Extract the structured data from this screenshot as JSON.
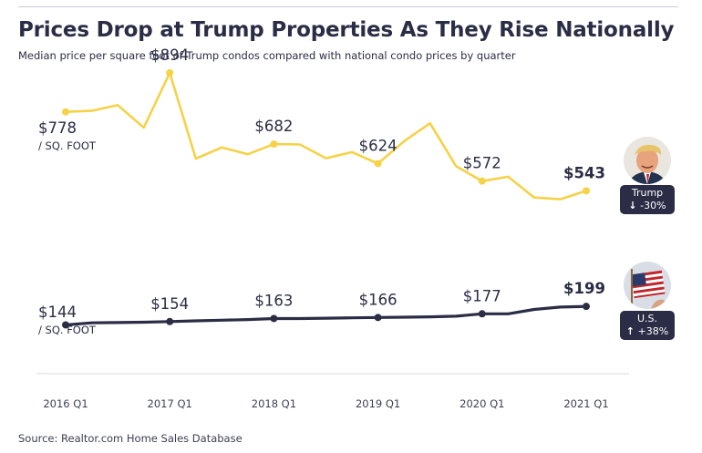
{
  "header": {
    "title": "Prices Drop at Trump Properties As They Rise Nationally",
    "subtitle": "Median price per square foot of Trump condos compared with national condo prices by quarter"
  },
  "footer": {
    "source": "Source: Realtor.com Home Sales Database"
  },
  "colors": {
    "trump": "#f5d247",
    "us": "#2a2d45",
    "text": "#2a2d45",
    "axis": "#d9dbe3"
  },
  "badges": {
    "trump": {
      "name": "Trump",
      "arrow": "↓",
      "change": "-30%"
    },
    "us": {
      "name": "U.S.",
      "arrow": "↑",
      "change": "+38%"
    }
  },
  "chart_data": {
    "type": "line",
    "unit_label": "/ SQ. FOOT",
    "x": [
      "2016 Q1",
      "2016 Q2",
      "2016 Q3",
      "2016 Q4",
      "2017 Q1",
      "2017 Q2",
      "2017 Q3",
      "2017 Q4",
      "2018 Q1",
      "2018 Q2",
      "2018 Q3",
      "2018 Q4",
      "2019 Q1",
      "2019 Q2",
      "2019 Q3",
      "2019 Q4",
      "2020 Q1",
      "2020 Q2",
      "2020 Q3",
      "2020 Q4",
      "2021 Q1"
    ],
    "tick_labels": [
      "2016 Q1",
      "2017 Q1",
      "2018 Q1",
      "2019 Q1",
      "2020 Q1",
      "2021 Q1"
    ],
    "ylim": [
      0,
      960
    ],
    "series": [
      {
        "name": "Trump",
        "values": [
          778,
          781,
          798,
          731,
          894,
          639,
          672,
          652,
          682,
          681,
          640,
          658,
          624,
          690,
          744,
          616,
          572,
          585,
          523,
          518,
          543
        ],
        "labels": [
          {
            "index": 0,
            "text": "$778"
          },
          {
            "index": 4,
            "text": "$894"
          },
          {
            "index": 8,
            "text": "$682"
          },
          {
            "index": 12,
            "text": "$624"
          },
          {
            "index": 16,
            "text": "$572"
          },
          {
            "index": 20,
            "text": "$543"
          }
        ]
      },
      {
        "name": "U.S.",
        "values": [
          144,
          150,
          151,
          152,
          154,
          156,
          158,
          160,
          163,
          163,
          164,
          165,
          166,
          167,
          168,
          170,
          177,
          177,
          190,
          197,
          199
        ],
        "labels": [
          {
            "index": 0,
            "text": "$144"
          },
          {
            "index": 4,
            "text": "$154"
          },
          {
            "index": 8,
            "text": "$163"
          },
          {
            "index": 12,
            "text": "$166"
          },
          {
            "index": 16,
            "text": "$177"
          },
          {
            "index": 20,
            "text": "$199"
          }
        ]
      }
    ]
  }
}
